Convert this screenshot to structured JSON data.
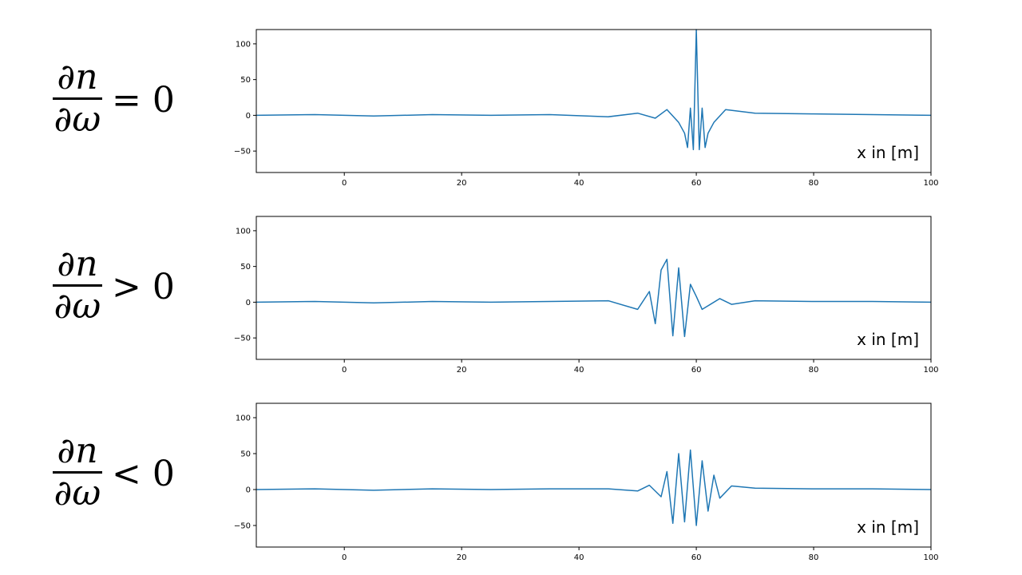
{
  "equations": [
    {
      "numerator": "∂n",
      "denominator": "∂ω",
      "relation": "= 0"
    },
    {
      "numerator": "∂n",
      "denominator": "∂ω",
      "relation": "> 0"
    },
    {
      "numerator": "∂n",
      "denominator": "∂ω",
      "relation": "< 0"
    }
  ],
  "colors": {
    "line": "#1f77b4",
    "axis": "#000000"
  },
  "chart_data": [
    {
      "type": "line",
      "xlim": [
        -15,
        100
      ],
      "ylim": [
        -80,
        120
      ],
      "xticks": [
        0,
        20,
        40,
        60,
        80,
        100
      ],
      "yticks": [
        -50,
        0,
        50,
        100
      ],
      "annotation": "x in [m]",
      "grid": false,
      "series": [
        {
          "x": [
            -15,
            -5,
            5,
            15,
            25,
            35,
            45,
            50,
            53,
            55,
            57,
            58,
            58.5,
            59,
            59.5,
            60,
            60.5,
            61,
            61.5,
            62,
            63,
            65,
            70,
            80,
            90,
            100
          ],
          "y": [
            0,
            1,
            -1,
            1,
            0,
            1,
            -2,
            3,
            -4,
            8,
            -10,
            -25,
            -45,
            10,
            -48,
            120,
            -48,
            10,
            -45,
            -25,
            -10,
            8,
            3,
            2,
            1,
            0
          ]
        }
      ]
    },
    {
      "type": "line",
      "xlim": [
        -15,
        100
      ],
      "ylim": [
        -80,
        120
      ],
      "xticks": [
        0,
        20,
        40,
        60,
        80,
        100
      ],
      "yticks": [
        -50,
        0,
        50,
        100
      ],
      "annotation": "x in [m]",
      "grid": false,
      "series": [
        {
          "x": [
            -15,
            -5,
            5,
            15,
            25,
            35,
            45,
            50,
            52,
            53,
            54,
            55,
            56,
            57,
            58,
            59,
            60,
            61,
            62,
            64,
            66,
            70,
            80,
            90,
            100
          ],
          "y": [
            0,
            1,
            -1,
            1,
            0,
            1,
            2,
            -10,
            15,
            -30,
            45,
            60,
            -47,
            48,
            -48,
            25,
            8,
            -10,
            -5,
            5,
            -3,
            2,
            1,
            1,
            0
          ]
        }
      ]
    },
    {
      "type": "line",
      "xlim": [
        -15,
        100
      ],
      "ylim": [
        -80,
        120
      ],
      "xticks": [
        0,
        20,
        40,
        60,
        80,
        100
      ],
      "yticks": [
        -50,
        0,
        50,
        100
      ],
      "annotation": "x in [m]",
      "grid": false,
      "series": [
        {
          "x": [
            -15,
            -5,
            5,
            15,
            25,
            35,
            45,
            50,
            52,
            54,
            55,
            56,
            57,
            58,
            59,
            60,
            61,
            62,
            63,
            64,
            66,
            70,
            80,
            90,
            100
          ],
          "y": [
            0,
            1,
            -1,
            1,
            0,
            1,
            1,
            -2,
            6,
            -10,
            25,
            -47,
            50,
            -45,
            55,
            -50,
            40,
            -30,
            20,
            -12,
            5,
            2,
            1,
            1,
            0
          ]
        }
      ]
    }
  ]
}
